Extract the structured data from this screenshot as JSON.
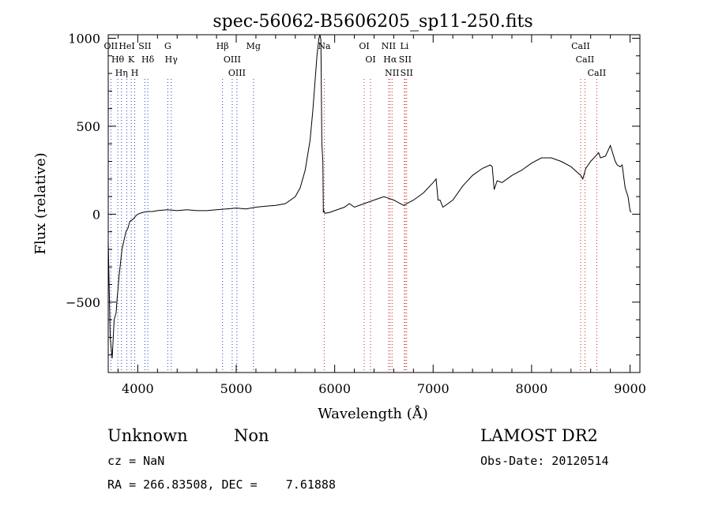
{
  "chart_data": {
    "type": "line",
    "title": "spec-56062-B5606205_sp11-250.fits",
    "xlabel": "Wavelength (Å)",
    "ylabel": "Flux (relative)",
    "xlim": [
      3700,
      9100
    ],
    "ylim": [
      -900,
      1020
    ],
    "xticks": [
      4000,
      5000,
      6000,
      7000,
      8000,
      9000
    ],
    "yticks": [
      -500,
      0,
      500,
      1000
    ],
    "grid": false,
    "series": [
      {
        "x": [
          3700,
          3720,
          3740,
          3760,
          3780,
          3790,
          3800,
          3810,
          3820,
          3840,
          3860,
          3880,
          3900,
          3920,
          3950,
          3980,
          4000,
          4050,
          4100,
          4150,
          4200,
          4300,
          4400,
          4500,
          4600,
          4700,
          4800,
          4900,
          5000,
          5100,
          5200,
          5300,
          5400,
          5500,
          5600,
          5650,
          5700,
          5750,
          5780,
          5800,
          5820,
          5840,
          5850,
          5860,
          5870,
          5880,
          5885,
          5890,
          5900,
          5950,
          6000,
          6100,
          6150,
          6200,
          6300,
          6400,
          6500,
          6550,
          6600,
          6700,
          6800,
          6900,
          7000,
          7030,
          7050,
          7070,
          7100,
          7200,
          7300,
          7400,
          7500,
          7580,
          7600,
          7620,
          7650,
          7700,
          7800,
          7900,
          8000,
          8100,
          8200,
          8300,
          8400,
          8480,
          8500,
          8520,
          8550,
          8600,
          8650,
          8680,
          8700,
          8750,
          8800,
          8850,
          8870,
          8900,
          8920,
          8950,
          8980,
          9000,
          9010
        ],
        "y": [
          -150,
          -700,
          -820,
          -600,
          -560,
          -480,
          -420,
          -350,
          -300,
          -200,
          -150,
          -100,
          -80,
          -40,
          -30,
          -10,
          0,
          10,
          15,
          15,
          20,
          25,
          20,
          25,
          20,
          20,
          25,
          30,
          35,
          30,
          40,
          45,
          50,
          60,
          100,
          150,
          250,
          420,
          600,
          750,
          900,
          1000,
          1020,
          990,
          400,
          300,
          10,
          20,
          5,
          10,
          20,
          40,
          60,
          40,
          60,
          80,
          100,
          90,
          80,
          50,
          80,
          120,
          180,
          200,
          80,
          80,
          40,
          80,
          160,
          220,
          260,
          280,
          270,
          140,
          190,
          180,
          220,
          250,
          290,
          320,
          320,
          300,
          270,
          230,
          220,
          200,
          260,
          300,
          330,
          350,
          320,
          330,
          390,
          300,
          280,
          270,
          280,
          150,
          100,
          20,
          10
        ]
      }
    ],
    "lines": [
      {
        "x": 3727,
        "labels": [
          "OII"
        ],
        "color": "blue"
      },
      {
        "x": 3797,
        "labels": [
          "Hθ"
        ],
        "color": "blue"
      },
      {
        "x": 3835,
        "labels": [
          "Hη"
        ],
        "color": "blue"
      },
      {
        "x": 3889,
        "labels": [
          "HeI"
        ],
        "color": "blue"
      },
      {
        "x": 3934,
        "labels": [
          "K"
        ],
        "color": "blue"
      },
      {
        "x": 3969,
        "labels": [
          "H"
        ],
        "color": "blue"
      },
      {
        "x": 4072,
        "labels": [
          "SII"
        ],
        "color": "blue"
      },
      {
        "x": 4102,
        "labels": [
          "Hδ"
        ],
        "color": "blue"
      },
      {
        "x": 4305,
        "labels": [
          "G"
        ],
        "color": "blue"
      },
      {
        "x": 4340,
        "labels": [
          "Hγ"
        ],
        "color": "blue"
      },
      {
        "x": 4861,
        "labels": [
          "Hβ"
        ],
        "color": "blue"
      },
      {
        "x": 4959,
        "labels": [
          "OIII"
        ],
        "color": "blue"
      },
      {
        "x": 5007,
        "labels": [
          "OIII"
        ],
        "color": "blue"
      },
      {
        "x": 5175,
        "labels": [
          "Mg"
        ],
        "color": "blue"
      },
      {
        "x": 5894,
        "labels": [
          "Na"
        ],
        "color": "red"
      },
      {
        "x": 6300,
        "labels": [
          "OI"
        ],
        "color": "red"
      },
      {
        "x": 6364,
        "labels": [
          "OI"
        ],
        "color": "red"
      },
      {
        "x": 6548,
        "labels": [
          "NII"
        ],
        "color": "red"
      },
      {
        "x": 6563,
        "labels": [
          "Hα"
        ],
        "color": "red"
      },
      {
        "x": 6583,
        "labels": [
          "NII"
        ],
        "color": "red"
      },
      {
        "x": 6708,
        "labels": [
          "Li"
        ],
        "color": "red"
      },
      {
        "x": 6716,
        "labels": [
          "SII"
        ],
        "color": "red"
      },
      {
        "x": 6731,
        "labels": [
          "SII"
        ],
        "color": "red"
      },
      {
        "x": 8498,
        "labels": [
          "CaII"
        ],
        "color": "red"
      },
      {
        "x": 8542,
        "labels": [
          "CaII"
        ],
        "color": "red"
      },
      {
        "x": 8662,
        "labels": [
          "CaII"
        ],
        "color": "red"
      }
    ]
  },
  "info": {
    "class": "Unknown",
    "subclass": "Non",
    "cz": "cz = NaN",
    "coords": "RA = 266.83508, DEC =    7.61888",
    "survey": "LAMOST DR2",
    "obs_date": "Obs-Date: 20120514"
  }
}
